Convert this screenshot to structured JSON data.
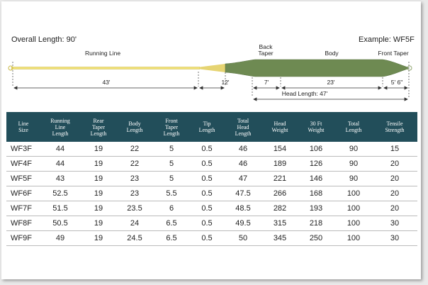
{
  "labels": {
    "overall_length": "Overall Length: 90'",
    "example": "Example: WF5F",
    "running_line": "Running Line",
    "back_taper": "Back\nTaper",
    "body": "Body",
    "front_taper": "Front Taper",
    "running_len": "43'",
    "rear_len": "12'",
    "back_len": "7'",
    "body_len": "23'",
    "front_len": "5' 6\"",
    "head_length": "Head Length: 47'"
  },
  "colors": {
    "running_line": "#f2e27a",
    "head": "#6e8a52",
    "table_header": "#224e5a"
  },
  "table": {
    "headers": [
      "Line\nSize",
      "Running\nLine\nLength",
      "Rear\nTaper\nLength",
      "Body\nLength",
      "Front\nTaper\nLength",
      "Tip\nLength",
      "Total\nHead\nLength",
      "Head\nWeight",
      "30 Ft\nWeight",
      "Total\nLength",
      "Tensile\nStrength"
    ],
    "rows": [
      [
        "WF3F",
        "44",
        "19",
        "22",
        "5",
        "0.5",
        "46",
        "154",
        "106",
        "90",
        "15"
      ],
      [
        "WF4F",
        "44",
        "19",
        "22",
        "5",
        "0.5",
        "46",
        "189",
        "126",
        "90",
        "20"
      ],
      [
        "WF5F",
        "43",
        "19",
        "23",
        "5",
        "0.5",
        "47",
        "221",
        "146",
        "90",
        "20"
      ],
      [
        "WF6F",
        "52.5",
        "19",
        "23",
        "5.5",
        "0.5",
        "47.5",
        "266",
        "168",
        "100",
        "20"
      ],
      [
        "WF7F",
        "51.5",
        "19",
        "23.5",
        "6",
        "0.5",
        "48.5",
        "282",
        "193",
        "100",
        "20"
      ],
      [
        "WF8F",
        "50.5",
        "19",
        "24",
        "6.5",
        "0.5",
        "49.5",
        "315",
        "218",
        "100",
        "30"
      ],
      [
        "WF9F",
        "49",
        "19",
        "24.5",
        "6.5",
        "0.5",
        "50",
        "345",
        "250",
        "100",
        "30"
      ]
    ]
  }
}
